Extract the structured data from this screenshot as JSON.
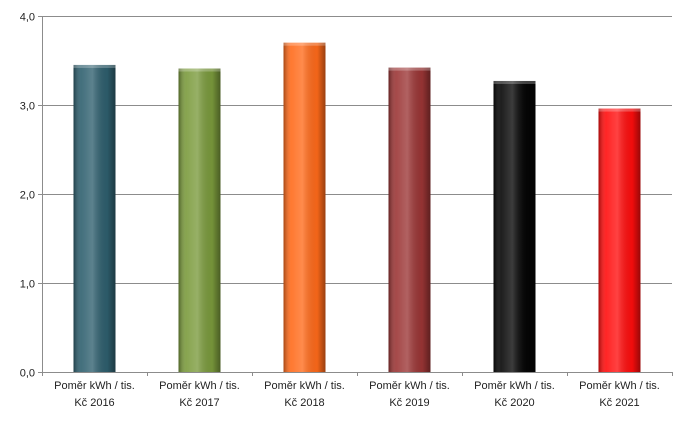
{
  "chart_data": {
    "type": "bar",
    "categories": [
      [
        "Poměr kWh / tis.",
        "Kč 2016"
      ],
      [
        "Poměr kWh / tis.",
        "Kč 2017"
      ],
      [
        "Poměr kWh / tis.",
        "Kč 2018"
      ],
      [
        "Poměr kWh / tis.",
        "Kč 2019"
      ],
      [
        "Poměr kWh / tis.",
        "Kč 2020"
      ],
      [
        "Poměr kWh / tis.",
        "Kč 2021"
      ]
    ],
    "values": [
      3.45,
      3.41,
      3.7,
      3.42,
      3.27,
      2.96
    ],
    "colors": [
      "#2e5f6e",
      "#7a9a3c",
      "#ff6a1a",
      "#9b3535",
      "#050505",
      "#ff0d0d"
    ],
    "ylim": [
      0,
      4
    ],
    "yticks": [
      "0,0",
      "1,0",
      "2,0",
      "3,0",
      "4,0"
    ],
    "ytick_values": [
      0,
      1,
      2,
      3,
      4
    ],
    "grid": true,
    "title": "",
    "xlabel": "",
    "ylabel": ""
  }
}
